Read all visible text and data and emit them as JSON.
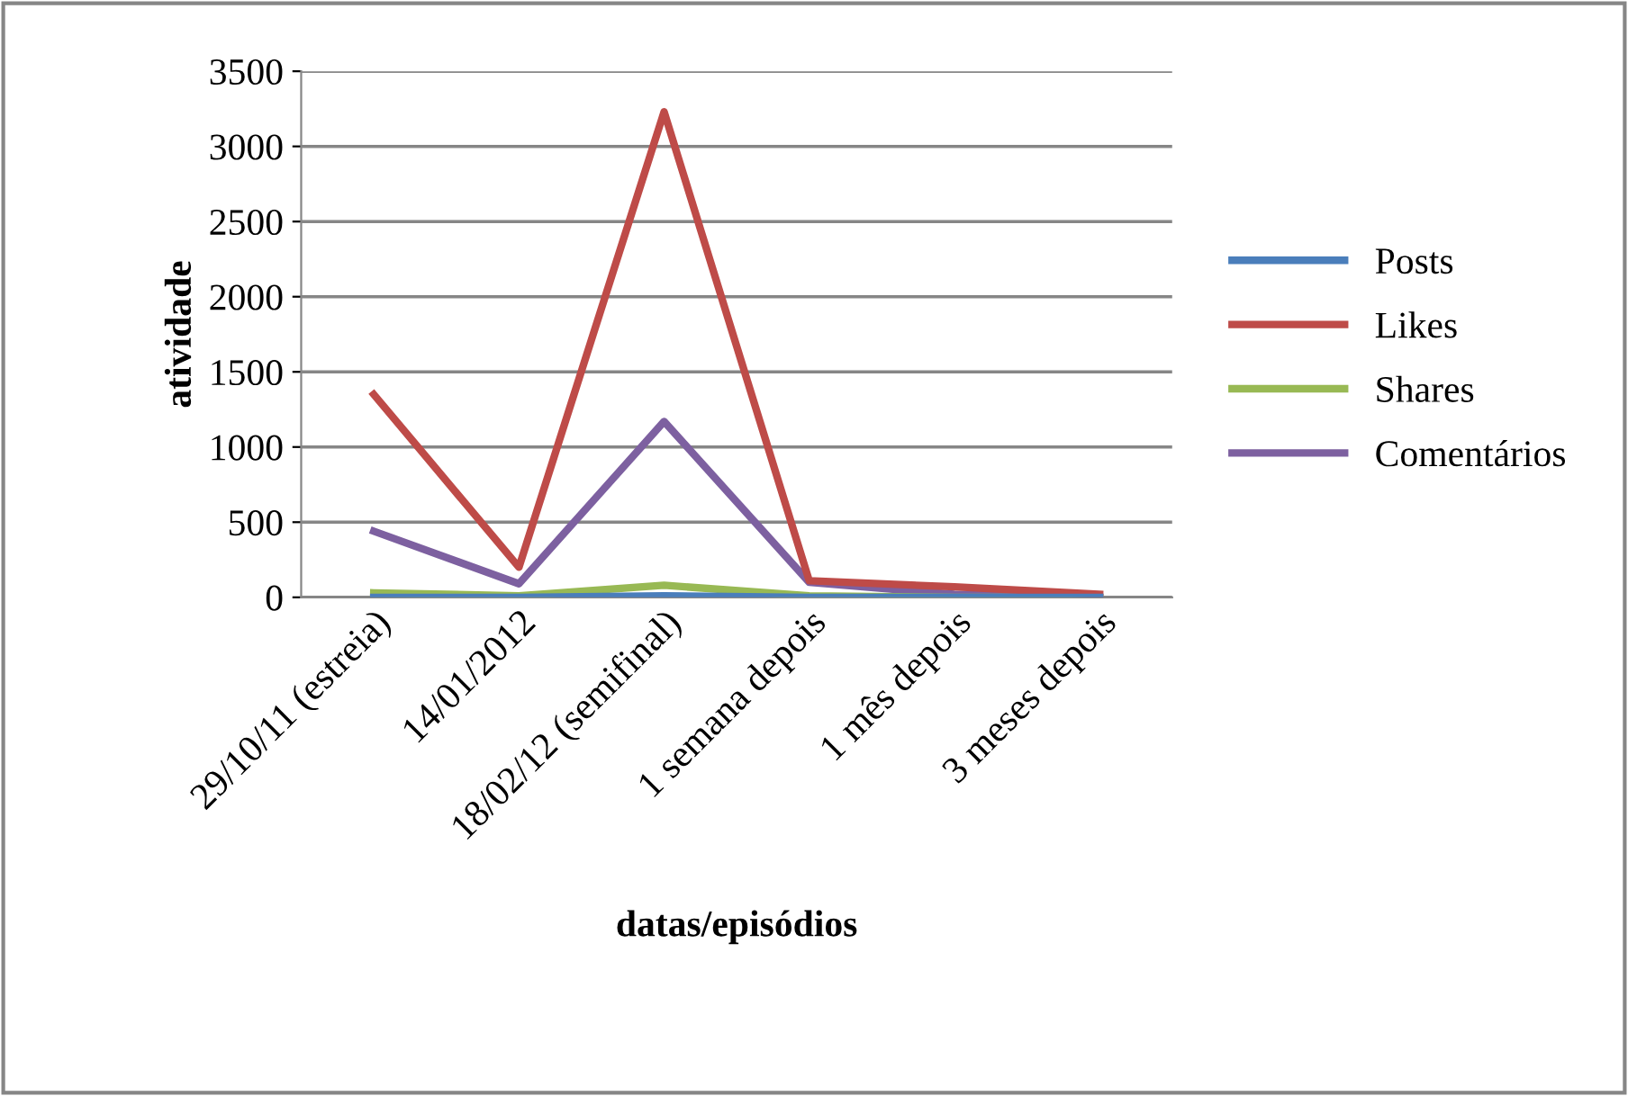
{
  "chart_data": {
    "type": "line",
    "xlabel": "datas/episódios",
    "ylabel": "atividade",
    "categories": [
      "29/10/11 (estreia)",
      "14/01/2012",
      "18/02/12 (semifinal)",
      "1 semana depois",
      "1 mês depois",
      "3 meses depois"
    ],
    "series": [
      {
        "name": "Posts",
        "color": "#4a7ebb",
        "values": [
          0,
          0,
          10,
          0,
          0,
          0
        ]
      },
      {
        "name": "Likes",
        "color": "#be4b48",
        "values": [
          1350,
          200,
          3230,
          110,
          70,
          20
        ]
      },
      {
        "name": "Shares",
        "color": "#98b954",
        "values": [
          30,
          10,
          80,
          10,
          0,
          0
        ]
      },
      {
        "name": "Comentários",
        "color": "#7d60a0",
        "values": [
          440,
          90,
          1170,
          100,
          20,
          0
        ]
      }
    ],
    "ylim": [
      0,
      3500
    ],
    "yticks": [
      0,
      500,
      1000,
      1500,
      2000,
      2500,
      3000,
      3500
    ],
    "grid": "y",
    "legend": "right",
    "marker": "none",
    "line_style": "solid"
  }
}
